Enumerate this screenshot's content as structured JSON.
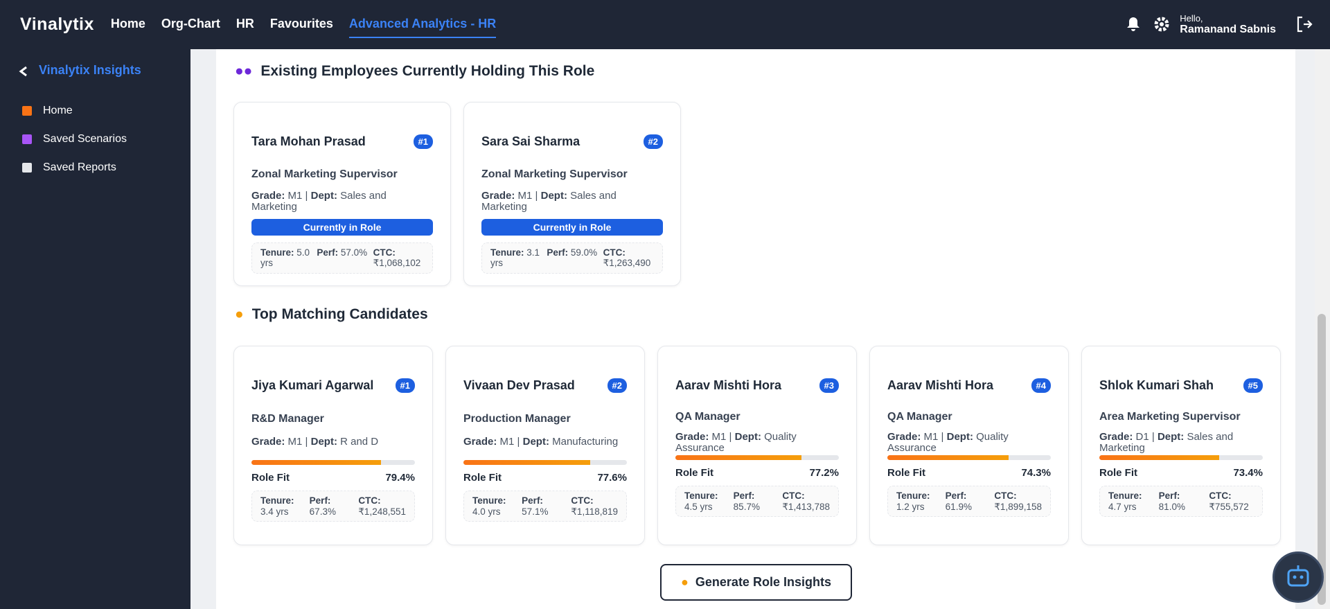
{
  "header": {
    "brand": "Vinalytix",
    "nav": [
      "Home",
      "Org-Chart",
      "HR",
      "Favourites",
      "Advanced Analytics - HR"
    ],
    "greeting": "Hello,",
    "user": "Ramanand Sabnis"
  },
  "sidebar": {
    "title": "Vinalytix Insights",
    "items": [
      "Home",
      "Saved Scenarios",
      "Saved Reports"
    ]
  },
  "labels": {
    "grade": "Grade:",
    "dept": "Dept:",
    "tenure": "Tenure:",
    "perf": "Perf:",
    "ctc": "CTC:",
    "role_fit": "Role Fit",
    "in_role": "Currently in Role"
  },
  "existing": {
    "title": "Existing Employees Currently Holding This Role",
    "cards": [
      {
        "name": "Tara Mohan Prasad",
        "rank": "#1",
        "role": "Zonal Marketing Supervisor",
        "grade": "M1",
        "dept": "Sales and Marketing",
        "tenure": "5.0 yrs",
        "perf": "57.0%",
        "ctc": "₹1,068,102"
      },
      {
        "name": "Sara Sai Sharma",
        "rank": "#2",
        "role": "Zonal Marketing Supervisor",
        "grade": "M1",
        "dept": "Sales and Marketing",
        "tenure": "3.1 yrs",
        "perf": "59.0%",
        "ctc": "₹1,263,490"
      }
    ]
  },
  "candidates": {
    "title": "Top Matching Candidates",
    "cards": [
      {
        "name": "Jiya Kumari Agarwal",
        "rank": "#1",
        "role": "R&D Manager",
        "grade": "M1",
        "dept": "R and D",
        "fit": "79.4%",
        "tenure": "3.4 yrs",
        "perf": "67.3%",
        "ctc": "₹1,248,551"
      },
      {
        "name": "Vivaan Dev Prasad",
        "rank": "#2",
        "role": "Production Manager",
        "grade": "M1",
        "dept": "Manufacturing",
        "fit": "77.6%",
        "tenure": "4.0 yrs",
        "perf": "57.1%",
        "ctc": "₹1,118,819"
      },
      {
        "name": "Aarav Mishti Hora",
        "rank": "#3",
        "role": "QA Manager",
        "grade": "M1",
        "dept": "Quality Assurance",
        "fit": "77.2%",
        "tenure": "4.5 yrs",
        "perf": "85.7%",
        "ctc": "₹1,413,788"
      },
      {
        "name": "Aarav Mishti Hora",
        "rank": "#4",
        "role": "QA Manager",
        "grade": "M1",
        "dept": "Quality Assurance",
        "fit": "74.3%",
        "tenure": "1.2 yrs",
        "perf": "61.9%",
        "ctc": "₹1,899,158"
      },
      {
        "name": "Shlok Kumari Shah",
        "rank": "#5",
        "role": "Area Marketing Supervisor",
        "grade": "D1",
        "dept": "Sales and Marketing",
        "fit": "73.4%",
        "tenure": "4.7 yrs",
        "perf": "81.0%",
        "ctc": "₹755,572"
      }
    ]
  },
  "button": "Generate Role Insights"
}
